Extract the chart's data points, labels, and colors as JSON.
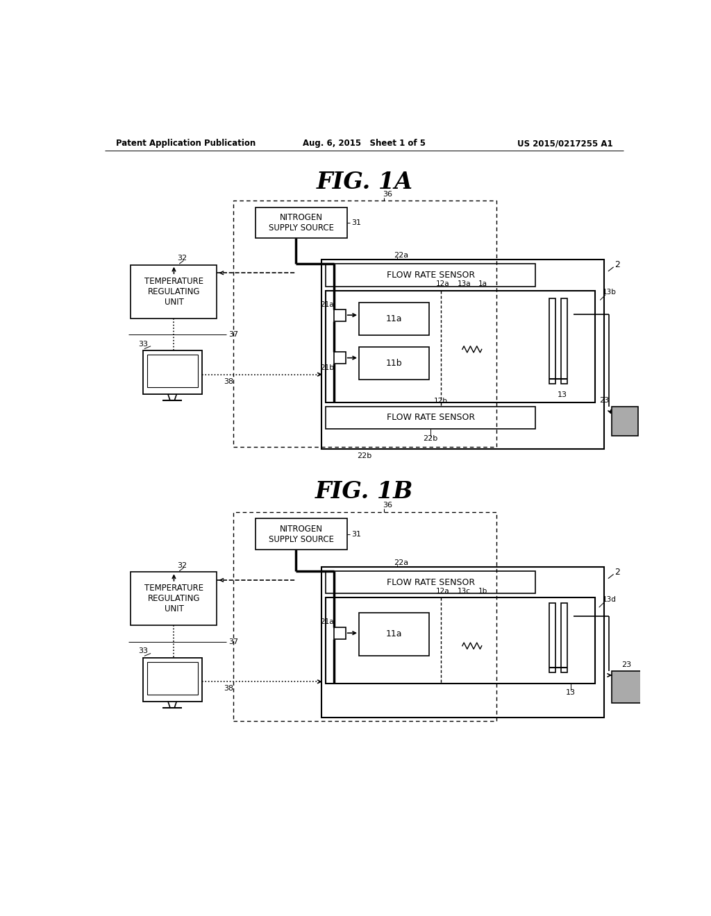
{
  "background_color": "#ffffff",
  "header_left": "Patent Application Publication",
  "header_center": "Aug. 6, 2015   Sheet 1 of 5",
  "header_right": "US 2015/0217255 A1",
  "fig1a_title": "FIG. 1A",
  "fig1b_title": "FIG. 1B",
  "line_color": "#000000",
  "gray_fill": "#999999"
}
